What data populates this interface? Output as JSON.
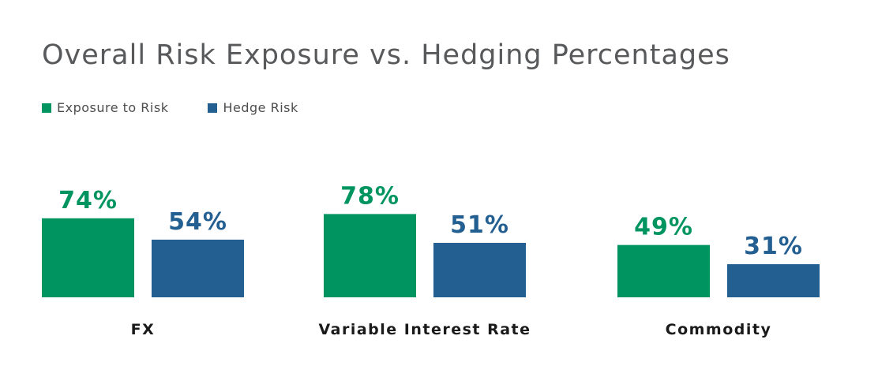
{
  "chart_data": {
    "type": "bar",
    "title": "Overall Risk Exposure vs. Hedging Percentages",
    "categories": [
      "FX",
      "Variable Interest Rate",
      "Commodity"
    ],
    "series": [
      {
        "name": "Exposure to Risk",
        "values": [
          74,
          78,
          49
        ],
        "labels": [
          "74%",
          "78%",
          "49%"
        ]
      },
      {
        "name": "Hedge Risk",
        "values": [
          54,
          51,
          31
        ],
        "labels": [
          "54%",
          "51%",
          "31%"
        ]
      }
    ],
    "colors": {
      "Exposure to Risk": "#009460",
      "Hedge Risk": "#245f92"
    },
    "ylim": [
      0,
      100
    ],
    "grid": false,
    "legend_position": "top-left"
  }
}
